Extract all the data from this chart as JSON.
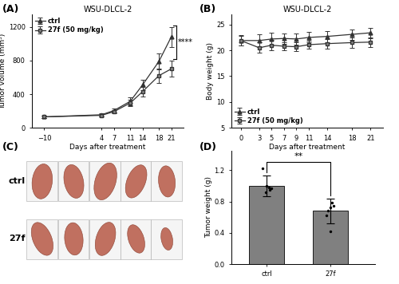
{
  "panel_A": {
    "title": "WSU-DLCL-2",
    "xlabel": "Days after treatment",
    "ylabel": "Tumor volume (mm³)",
    "days": [
      -10,
      4,
      7,
      11,
      14,
      18,
      21
    ],
    "ctrl_mean": [
      130,
      155,
      205,
      315,
      510,
      790,
      1080
    ],
    "ctrl_err": [
      15,
      20,
      25,
      45,
      65,
      95,
      120
    ],
    "drug_mean": [
      130,
      148,
      192,
      295,
      430,
      620,
      700
    ],
    "drug_err": [
      15,
      18,
      22,
      40,
      55,
      85,
      95
    ],
    "ylim": [
      0,
      1350
    ],
    "yticks": [
      0,
      400,
      800,
      1200
    ],
    "significance": "****"
  },
  "panel_B": {
    "title": "WSU-DLCL-2",
    "xlabel": "Days after treatment",
    "ylabel": "Body weight (g)",
    "days": [
      0,
      3,
      5,
      7,
      9,
      11,
      14,
      18,
      21
    ],
    "ctrl_mean": [
      21.9,
      21.9,
      22.2,
      22.3,
      22.2,
      22.5,
      22.7,
      23.1,
      23.4
    ],
    "ctrl_err": [
      1.0,
      1.2,
      1.2,
      1.0,
      1.1,
      1.0,
      1.1,
      1.0,
      1.0
    ],
    "drug_mean": [
      21.9,
      20.5,
      21.0,
      20.8,
      20.7,
      21.1,
      21.3,
      21.5,
      21.6
    ],
    "drug_err": [
      0.9,
      1.0,
      1.0,
      0.8,
      0.9,
      0.8,
      0.9,
      1.0,
      0.9
    ],
    "ylim": [
      5,
      27
    ],
    "yticks": [
      5,
      10,
      15,
      20,
      25
    ]
  },
  "panel_D": {
    "ylabel": "Tumor weight (g)",
    "categories": [
      "ctrl",
      "27f"
    ],
    "means": [
      1.0,
      0.68
    ],
    "errors": [
      0.13,
      0.16
    ],
    "scatter_ctrl": [
      1.22,
      0.95,
      0.92,
      0.98,
      0.97,
      1.0
    ],
    "scatter_27f": [
      0.42,
      0.62,
      0.68,
      0.72,
      0.78,
      0.74
    ],
    "ylim": [
      0.0,
      1.45
    ],
    "yticks": [
      0.0,
      0.4,
      0.8,
      1.2
    ],
    "bar_color": "#808080",
    "significance": "**"
  },
  "legend_ctrl": "ctrl",
  "legend_drug": "27f (50 mg/kg)",
  "line_color": "#333333",
  "marker_ctrl": "^",
  "marker_drug": "s",
  "font_size": 7,
  "tick_font_size": 6,
  "title_font_size": 7,
  "label_font_size": 6.5
}
